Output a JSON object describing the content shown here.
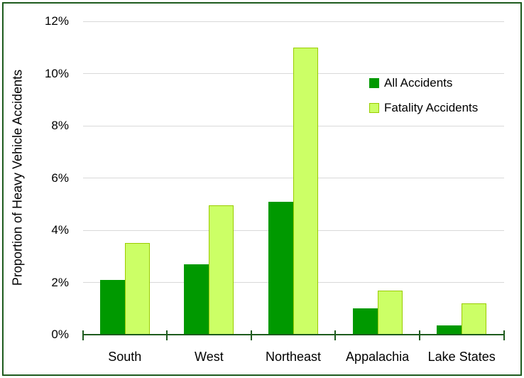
{
  "figure": {
    "background": "#ffffff",
    "frame_color": "#1e5b1e"
  },
  "chart_data": {
    "type": "bar",
    "title": "",
    "xlabel": "",
    "ylabel": "Proportion of Heavy Vehicle Accidents",
    "categories": [
      "South",
      "West",
      "Northeast",
      "Appalachia",
      "Lake States"
    ],
    "series": [
      {
        "name": "All Accidents",
        "color": "#009900",
        "border_color": "#009900",
        "values": [
          2.1,
          2.7,
          5.1,
          1.0,
          0.35
        ]
      },
      {
        "name": "Fatality Accidents",
        "color": "#ccff66",
        "border_color": "#99cc00",
        "values": [
          3.5,
          4.95,
          11.0,
          1.7,
          1.2
        ]
      }
    ],
    "ylim": [
      0,
      12
    ],
    "ytick_values": [
      0,
      2,
      4,
      6,
      8,
      10,
      12
    ],
    "ytick_labels": [
      "0%",
      "2%",
      "4%",
      "6%",
      "8%",
      "10%",
      "12%"
    ],
    "grid": "horizontal",
    "gridline_color": "#d9d9d9",
    "axis_color": "#1e5b1e",
    "legend_position": "upper-right-inside"
  }
}
